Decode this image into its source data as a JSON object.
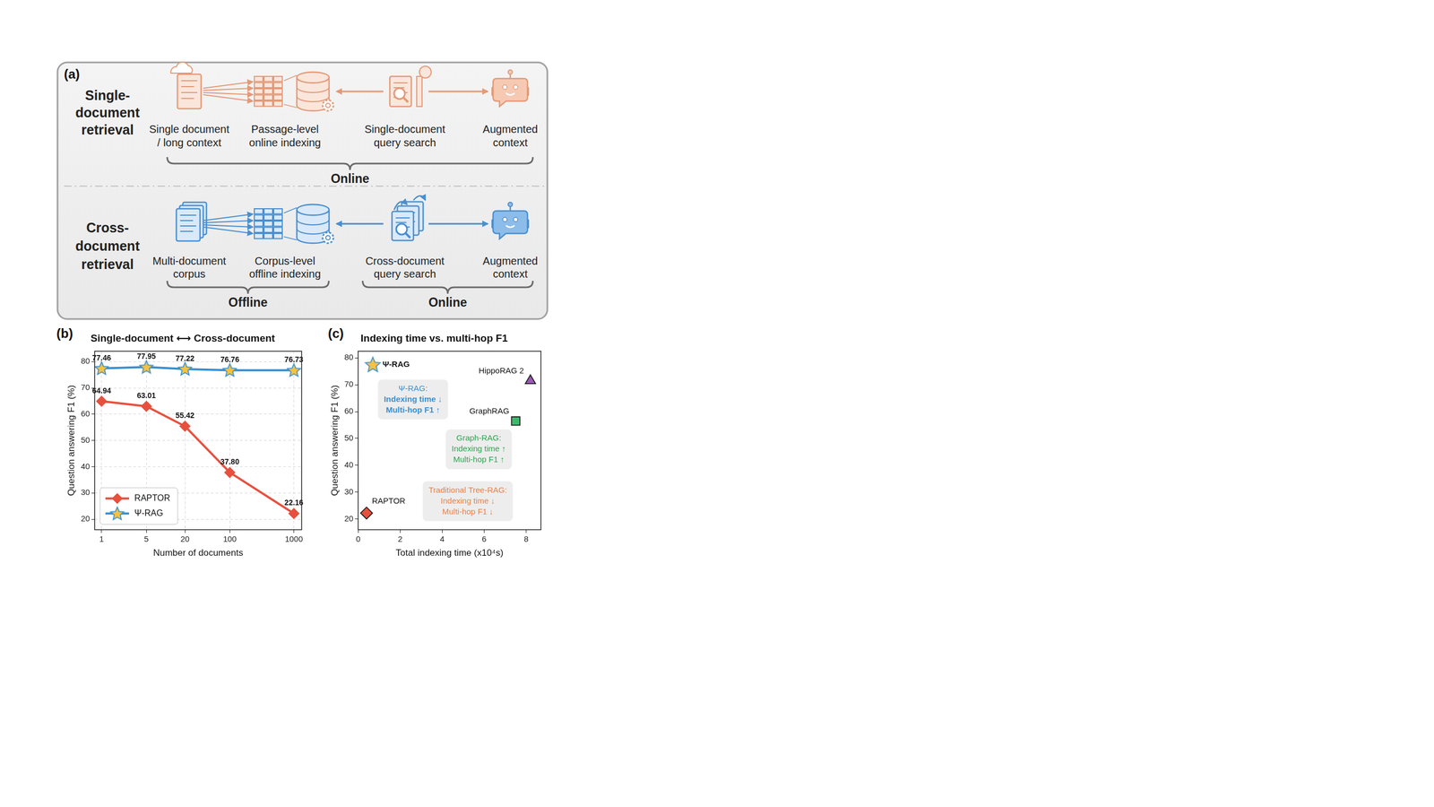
{
  "diagram": {
    "panel_label": "(a)",
    "rows": [
      {
        "title": [
          "Single-",
          "document",
          "retrieval"
        ],
        "nodes": [
          [
            "Single document",
            "/ long context"
          ],
          [
            "Passage-level",
            "online indexing"
          ],
          [
            "Single-document",
            "query search"
          ],
          [
            "Augmented",
            "context"
          ]
        ],
        "phases": [
          "Online"
        ]
      },
      {
        "title": [
          "Cross-",
          "document",
          "retrieval"
        ],
        "nodes": [
          [
            "Multi-document",
            "corpus"
          ],
          [
            "Corpus-level",
            "offline indexing"
          ],
          [
            "Cross-document",
            "query search"
          ],
          [
            "Augmented",
            "context"
          ]
        ],
        "phases": [
          "Offline",
          "Online"
        ]
      }
    ]
  },
  "chart_data": [
    {
      "panel_label": "(b)",
      "type": "line",
      "title": "Single-document ⟷ Cross-document",
      "x_label": "Number of documents",
      "y_label": "Question answering F1 (%)",
      "x": [
        1,
        5,
        20,
        100,
        1000
      ],
      "log": "x",
      "xlim": [
        0.78,
        1320
      ],
      "xticks": [
        1,
        5,
        20,
        100,
        1000
      ],
      "ylim": [
        16,
        84
      ],
      "yticks": [
        20,
        30,
        40,
        50,
        60,
        70,
        80
      ],
      "grid": true,
      "legend": "lower left",
      "data_labels": true,
      "series": [
        {
          "name": "RAPTOR",
          "color": "#e8503e",
          "marker": "diamond",
          "values": [
            64.94,
            63.01,
            55.42,
            37.8,
            22.16
          ],
          "value_labels": [
            "64.94",
            "63.01",
            "55.42",
            "37.80",
            "22.16"
          ]
        },
        {
          "name": "Ψ-RAG",
          "color": "#3a8fd0",
          "marker": "star",
          "values": [
            77.46,
            77.95,
            77.22,
            76.76,
            76.73
          ],
          "value_labels": [
            "77.46",
            "77.95",
            "77.22",
            "76.76",
            "76.73"
          ]
        }
      ]
    },
    {
      "panel_label": "(c)",
      "type": "scatter",
      "title": "Indexing time vs. multi-hop F1",
      "x_label": "Total indexing time (x10⁴s)",
      "y_label": "Question answering F1 (%)",
      "xlim": [
        0,
        8.7
      ],
      "xticks": [
        0,
        2,
        4,
        6,
        8
      ],
      "ylim": [
        16,
        82.5
      ],
      "yticks": [
        20,
        30,
        40,
        50,
        60,
        70,
        80
      ],
      "grid": false,
      "series": [
        {
          "name": "Ψ-RAG",
          "color": "#3a8fd0",
          "marker": "star",
          "x": [
            0.7
          ],
          "values": [
            77.5
          ]
        },
        {
          "name": "RAPTOR",
          "color": "#e8503e",
          "marker": "diamond",
          "x": [
            0.4
          ],
          "values": [
            22.2
          ]
        },
        {
          "name": "GraphRAG",
          "color": "#3cb96b",
          "marker": "square",
          "x": [
            7.5
          ],
          "values": [
            56.5
          ]
        },
        {
          "name": "HippoRAG 2",
          "color": "#9b59b6",
          "marker": "triangle",
          "x": [
            8.2
          ],
          "values": [
            71.5
          ]
        }
      ],
      "annotations": [
        {
          "text": [
            "Ψ-RAG:",
            "Indexing time ↓",
            "Multi-hop F1 ↑"
          ],
          "color": "#3a8fd0"
        },
        {
          "text": [
            "Graph-RAG:",
            "Indexing time ↑",
            "Multi-hop F1 ↑"
          ],
          "color": "#2ea44f"
        },
        {
          "text": [
            "Traditional Tree-RAG:",
            "Indexing time ↓",
            "Multi-hop F1 ↓"
          ],
          "color": "#e8804a"
        }
      ]
    }
  ]
}
